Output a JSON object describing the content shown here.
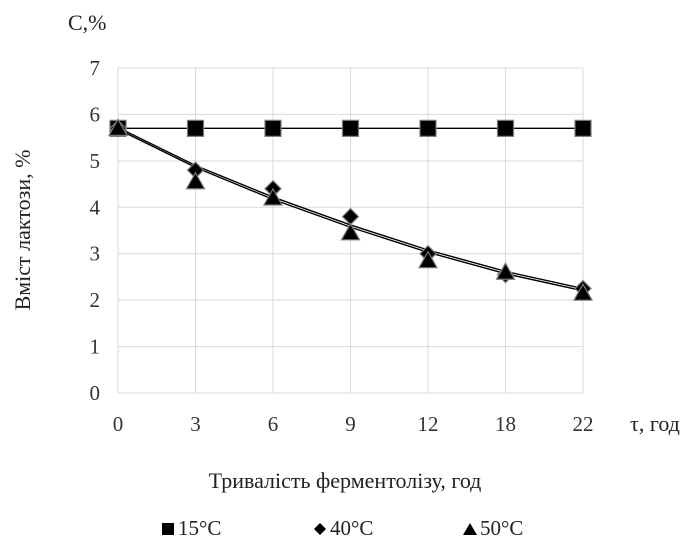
{
  "chart_data": {
    "type": "line",
    "ylabel_top": "C,%",
    "ylabel": "Вміст лактози, %",
    "xlabel_right": "τ, год",
    "xlabel": "Тривалість ферментолізу, год",
    "categories": [
      "0",
      "3",
      "6",
      "9",
      "12",
      "18",
      "22"
    ],
    "y_ticks": [
      "0",
      "1",
      "2",
      "3",
      "4",
      "5",
      "6",
      "7"
    ],
    "ylim": [
      0,
      7
    ],
    "grid": true,
    "legend_position": "bottom",
    "series": [
      {
        "name": "15°C",
        "marker": "square",
        "values": [
          5.7,
          5.7,
          5.7,
          5.7,
          5.7,
          5.7,
          5.7
        ],
        "trend": [
          5.7,
          5.7,
          5.7,
          5.7,
          5.7,
          5.7,
          5.7
        ]
      },
      {
        "name": "40°C",
        "marker": "diamond",
        "values": [
          5.7,
          4.8,
          4.4,
          3.8,
          3.0,
          2.55,
          2.25
        ],
        "trend": [
          5.72,
          4.9,
          4.22,
          3.62,
          3.08,
          2.62,
          2.25
        ]
      },
      {
        "name": "50°C",
        "marker": "triangle",
        "values": [
          5.7,
          4.55,
          4.2,
          3.45,
          2.85,
          2.6,
          2.15
        ],
        "trend": [
          5.68,
          4.86,
          4.17,
          3.57,
          3.03,
          2.57,
          2.2
        ]
      }
    ]
  }
}
